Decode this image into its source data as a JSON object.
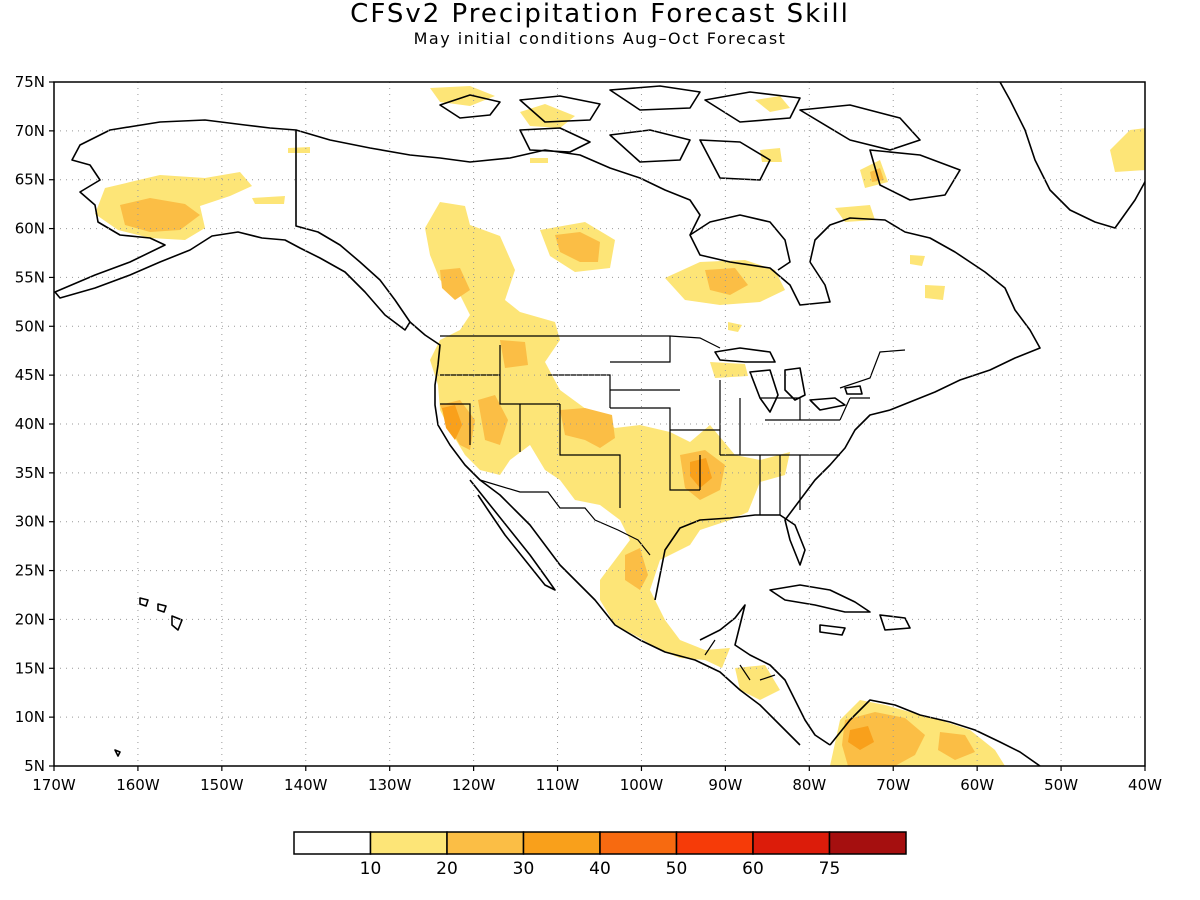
{
  "title": "CFSv2 Precipitation Forecast Skill",
  "subtitle": "May initial conditions  Aug–Oct Forecast",
  "map": {
    "lon_range": [
      -170,
      -40
    ],
    "lat_range": [
      5,
      75
    ],
    "gridlines": "dotted",
    "lat_ticks": [
      "75N",
      "70N",
      "65N",
      "60N",
      "55N",
      "50N",
      "45N",
      "40N",
      "35N",
      "30N",
      "25N",
      "20N",
      "15N",
      "10N",
      "5N"
    ],
    "lon_ticks": [
      "170W",
      "160W",
      "150W",
      "140W",
      "130W",
      "120W",
      "110W",
      "100W",
      "90W",
      "80W",
      "70W",
      "60W",
      "50W",
      "40W"
    ]
  },
  "colorbar": {
    "colors": [
      "#ffffff",
      "#fde577",
      "#fbbe45",
      "#f9a01b",
      "#f76a10",
      "#f63b08",
      "#dc1c0a",
      "#a50f0f"
    ],
    "labels": [
      "10",
      "20",
      "30",
      "40",
      "50",
      "60",
      "75"
    ]
  },
  "colors": {
    "level1": "#fde577",
    "level2": "#fbbe45",
    "level3": "#f9a01b"
  }
}
